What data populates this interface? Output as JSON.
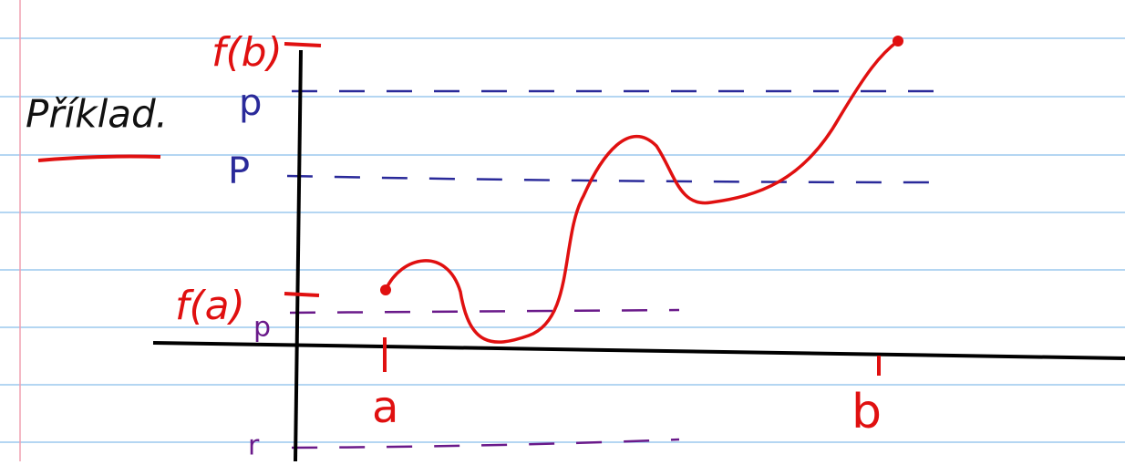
{
  "heading": "Příklad.",
  "labels": {
    "f_b": "f(b)",
    "p_top": "p",
    "p_mid": "P",
    "f_a": "f(a)",
    "p_low": "p",
    "r": "r",
    "a": "a",
    "b": "b"
  }
}
